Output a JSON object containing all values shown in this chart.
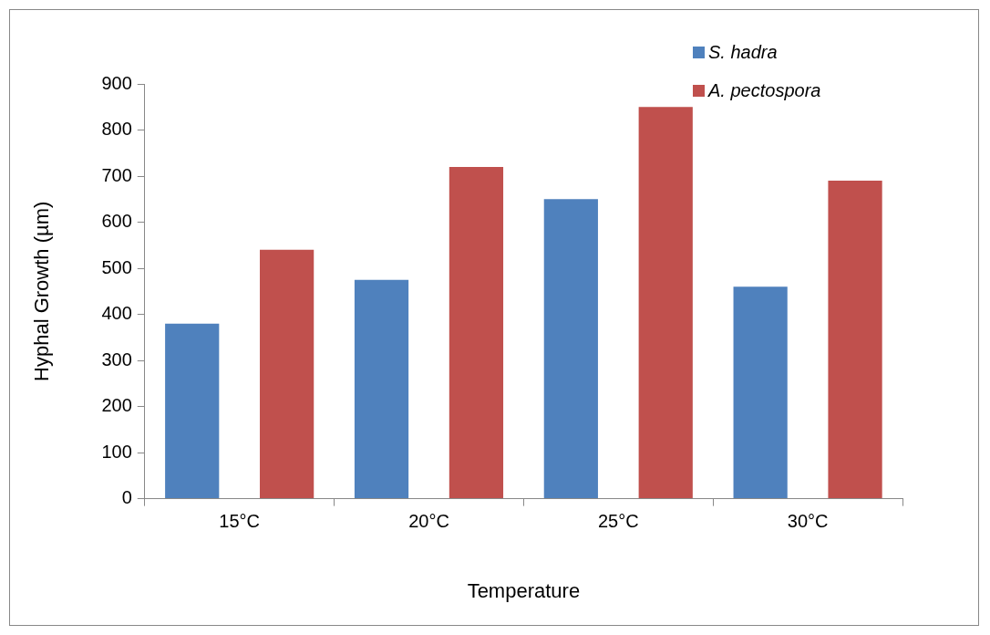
{
  "chart_data": {
    "type": "bar",
    "xlabel": "Temperature",
    "ylabel": "Hyphal Growth (µm)",
    "categories": [
      "15°C",
      "20°C",
      "25°C",
      "30°C"
    ],
    "series": [
      {
        "name": "S. hadra",
        "color": "#4f81bd",
        "values": [
          380,
          475,
          650,
          460
        ]
      },
      {
        "name": "A. pectospora",
        "color": "#c0504d",
        "values": [
          540,
          720,
          850,
          690
        ]
      }
    ],
    "ylim": [
      0,
      900
    ],
    "yticks": [
      0,
      100,
      200,
      300,
      400,
      500,
      600,
      700,
      800,
      900
    ],
    "grid": false,
    "legend": "top right"
  }
}
